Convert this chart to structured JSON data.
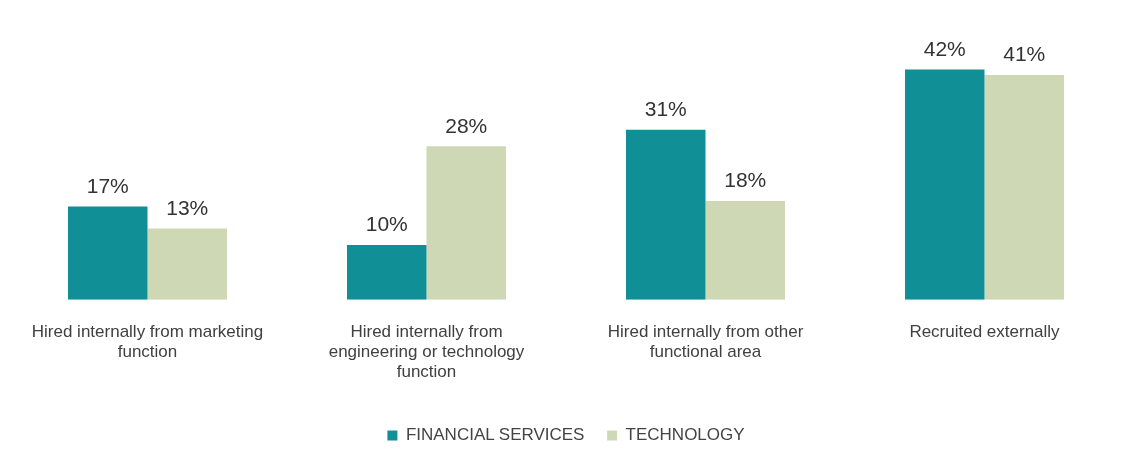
{
  "chart_data": {
    "type": "bar",
    "categories": [
      "Hired internally from marketing function",
      "Hired internally from engineering or technology function",
      "Hired internally from other functional area",
      "Recruited externally"
    ],
    "series": [
      {
        "name": "FINANCIAL SERVICES",
        "color": "#108f96",
        "values": [
          17,
          10,
          31,
          42
        ],
        "value_labels": [
          "17%",
          "10%",
          "31%",
          "42%"
        ]
      },
      {
        "name": "TECHNOLOGY",
        "color": "#cfd8b5",
        "values": [
          13,
          28,
          18,
          41
        ],
        "value_labels": [
          "13%",
          "28%",
          "18%",
          "41%"
        ]
      }
    ],
    "legend": "bottom",
    "grid": false
  }
}
